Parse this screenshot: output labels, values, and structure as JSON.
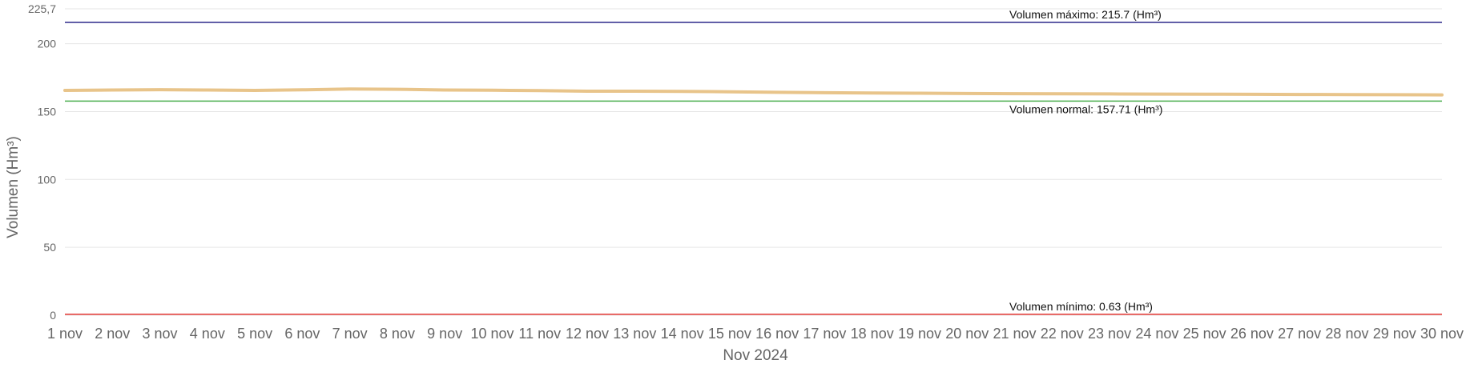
{
  "chart_data": {
    "type": "line",
    "xlabel": "Nov 2024",
    "ylabel": "Volumen (Hm³)",
    "ylim": [
      0,
      225.7
    ],
    "y_ticks": [
      "0",
      "50",
      "100",
      "150",
      "200",
      "225,7"
    ],
    "y_tick_values": [
      0,
      50,
      100,
      150,
      200,
      225.7
    ],
    "categories": [
      "1 nov",
      "2 nov",
      "3 nov",
      "4 nov",
      "5 nov",
      "6 nov",
      "7 nov",
      "8 nov",
      "9 nov",
      "10 nov",
      "11 nov",
      "12 nov",
      "13 nov",
      "14 nov",
      "15 nov",
      "16 nov",
      "17 nov",
      "18 nov",
      "19 nov",
      "20 nov",
      "21 nov",
      "22 nov",
      "23 nov",
      "24 nov",
      "25 nov",
      "26 nov",
      "27 nov",
      "28 nov",
      "29 nov",
      "30 nov"
    ],
    "series": [
      {
        "color": "#e8c48a",
        "values": [
          165.6,
          165.9,
          166.1,
          165.9,
          165.6,
          166.0,
          166.6,
          166.4,
          165.9,
          165.7,
          165.5,
          165.0,
          165.0,
          164.8,
          164.6,
          164.2,
          163.9,
          163.7,
          163.5,
          163.3,
          163.2,
          163.1,
          163.0,
          162.9,
          162.8,
          162.7,
          162.6,
          162.5,
          162.4,
          162.3
        ]
      }
    ],
    "reference_lines": [
      {
        "label": "Volumen máximo: 215.7 (Hm³)",
        "value": 215.7,
        "color": "#2e2a8c"
      },
      {
        "label": "Volumen normal: 157.71 (Hm³)",
        "value": 157.71,
        "color": "#4caf50"
      },
      {
        "label": "Volumen mínimo: 0.63 (Hm³)",
        "value": 0.63,
        "color": "#e53935"
      }
    ],
    "grid": true,
    "grid_color": "#e6e6e6"
  }
}
